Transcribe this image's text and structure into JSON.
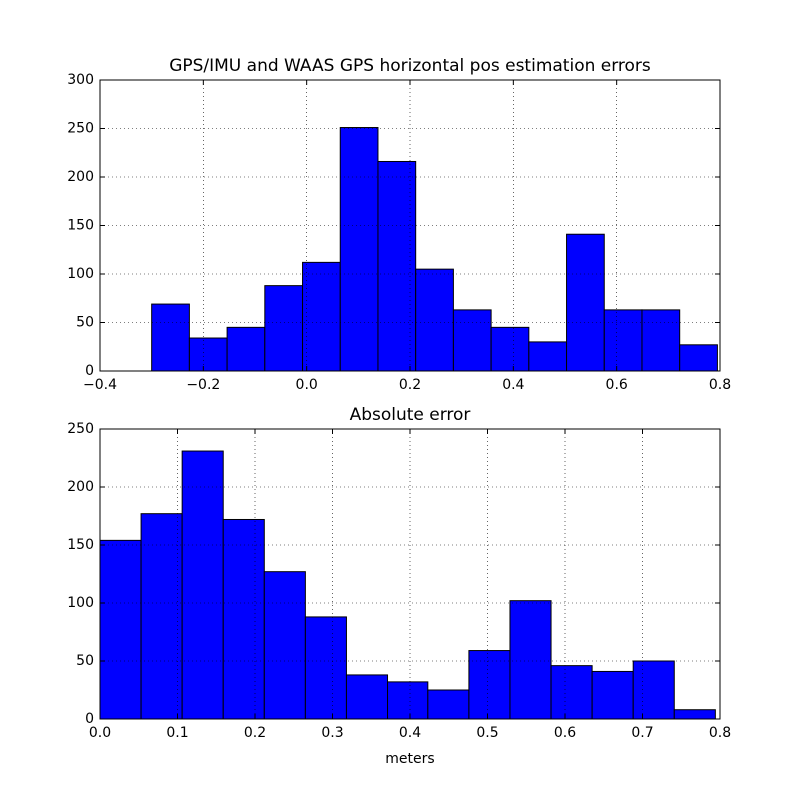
{
  "chart_data": [
    {
      "type": "histogram",
      "title": "GPS/IMU and WAAS GPS horizontal pos estimation errors",
      "bins": [
        -0.3,
        -0.227,
        -0.154,
        -0.081,
        -0.008,
        0.065,
        0.138,
        0.211,
        0.284,
        0.357,
        0.43,
        0.503,
        0.576,
        0.649,
        0.722,
        0.795
      ],
      "values": [
        69,
        34,
        45,
        88,
        112,
        251,
        216,
        105,
        63,
        45,
        30,
        141,
        63,
        63,
        27
      ],
      "color": "#0000ff",
      "xlim": [
        -0.4,
        0.8
      ],
      "xticks": [
        {
          "value": -0.4,
          "label": "−0.4"
        },
        {
          "value": -0.2,
          "label": "−0.2"
        },
        {
          "value": 0,
          "label": "0.0"
        },
        0.2,
        0.4,
        0.6,
        0.8
      ],
      "ylim": [
        0,
        300
      ],
      "yticks": [
        0,
        50,
        100,
        150,
        200,
        250,
        300
      ],
      "grid": true
    },
    {
      "type": "histogram",
      "title": "Absolute error",
      "xlabel": "meters",
      "bins": [
        0,
        0.053,
        0.106,
        0.159,
        0.212,
        0.265,
        0.318,
        0.371,
        0.423,
        0.476,
        0.529,
        0.582,
        0.635,
        0.688,
        0.741,
        0.794
      ],
      "values": [
        154,
        177,
        231,
        172,
        127,
        88,
        38,
        32,
        25,
        59,
        102,
        46,
        41,
        50,
        8
      ],
      "color": "#0000ff",
      "xlim": [
        0,
        0.8
      ],
      "xticks": [
        {
          "value": 0,
          "label": "0.0"
        },
        0.1,
        0.2,
        0.3,
        0.4,
        0.5,
        0.6,
        0.7,
        0.8
      ],
      "ylim": [
        0,
        250
      ],
      "yticks": [
        0,
        50,
        100,
        150,
        200,
        250
      ],
      "grid": true
    }
  ]
}
